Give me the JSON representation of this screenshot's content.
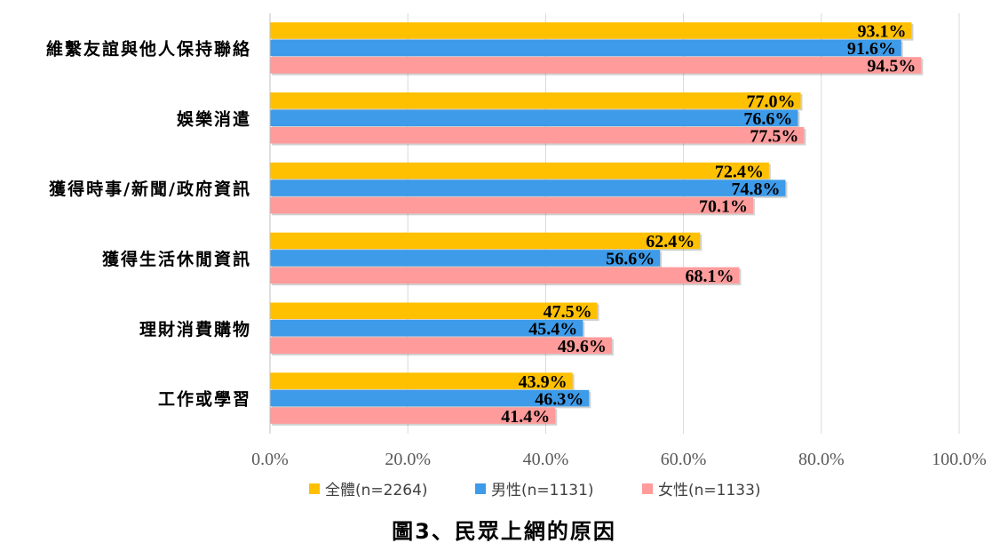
{
  "chart_data": {
    "type": "bar",
    "orientation": "horizontal",
    "categories": [
      "維繫友誼與他人保持聯絡",
      "娛樂消遣",
      "獲得時事/新聞/政府資訊",
      "獲得生活休閒資訊",
      "理財消費購物",
      "工作或學習"
    ],
    "series": [
      {
        "name": "全體(n=2264)",
        "color": "#FFC000",
        "values": [
          93.1,
          77.0,
          72.4,
          62.4,
          47.5,
          43.9
        ]
      },
      {
        "name": "男性(n=1131)",
        "color": "#3D9BE9",
        "values": [
          91.6,
          76.6,
          74.8,
          56.6,
          45.4,
          46.3
        ]
      },
      {
        "name": "女性(n=1133)",
        "color": "#FF9B9B",
        "values": [
          94.5,
          77.5,
          70.1,
          68.1,
          49.6,
          41.4
        ]
      }
    ],
    "xlim": [
      0,
      100
    ],
    "xticks": [
      "0.0%",
      "20.0%",
      "40.0%",
      "60.0%",
      "80.0%",
      "100.0%"
    ],
    "value_suffix": "%",
    "grid": true,
    "legend_position": "bottom"
  },
  "caption": "圖3、民眾上網的原因"
}
